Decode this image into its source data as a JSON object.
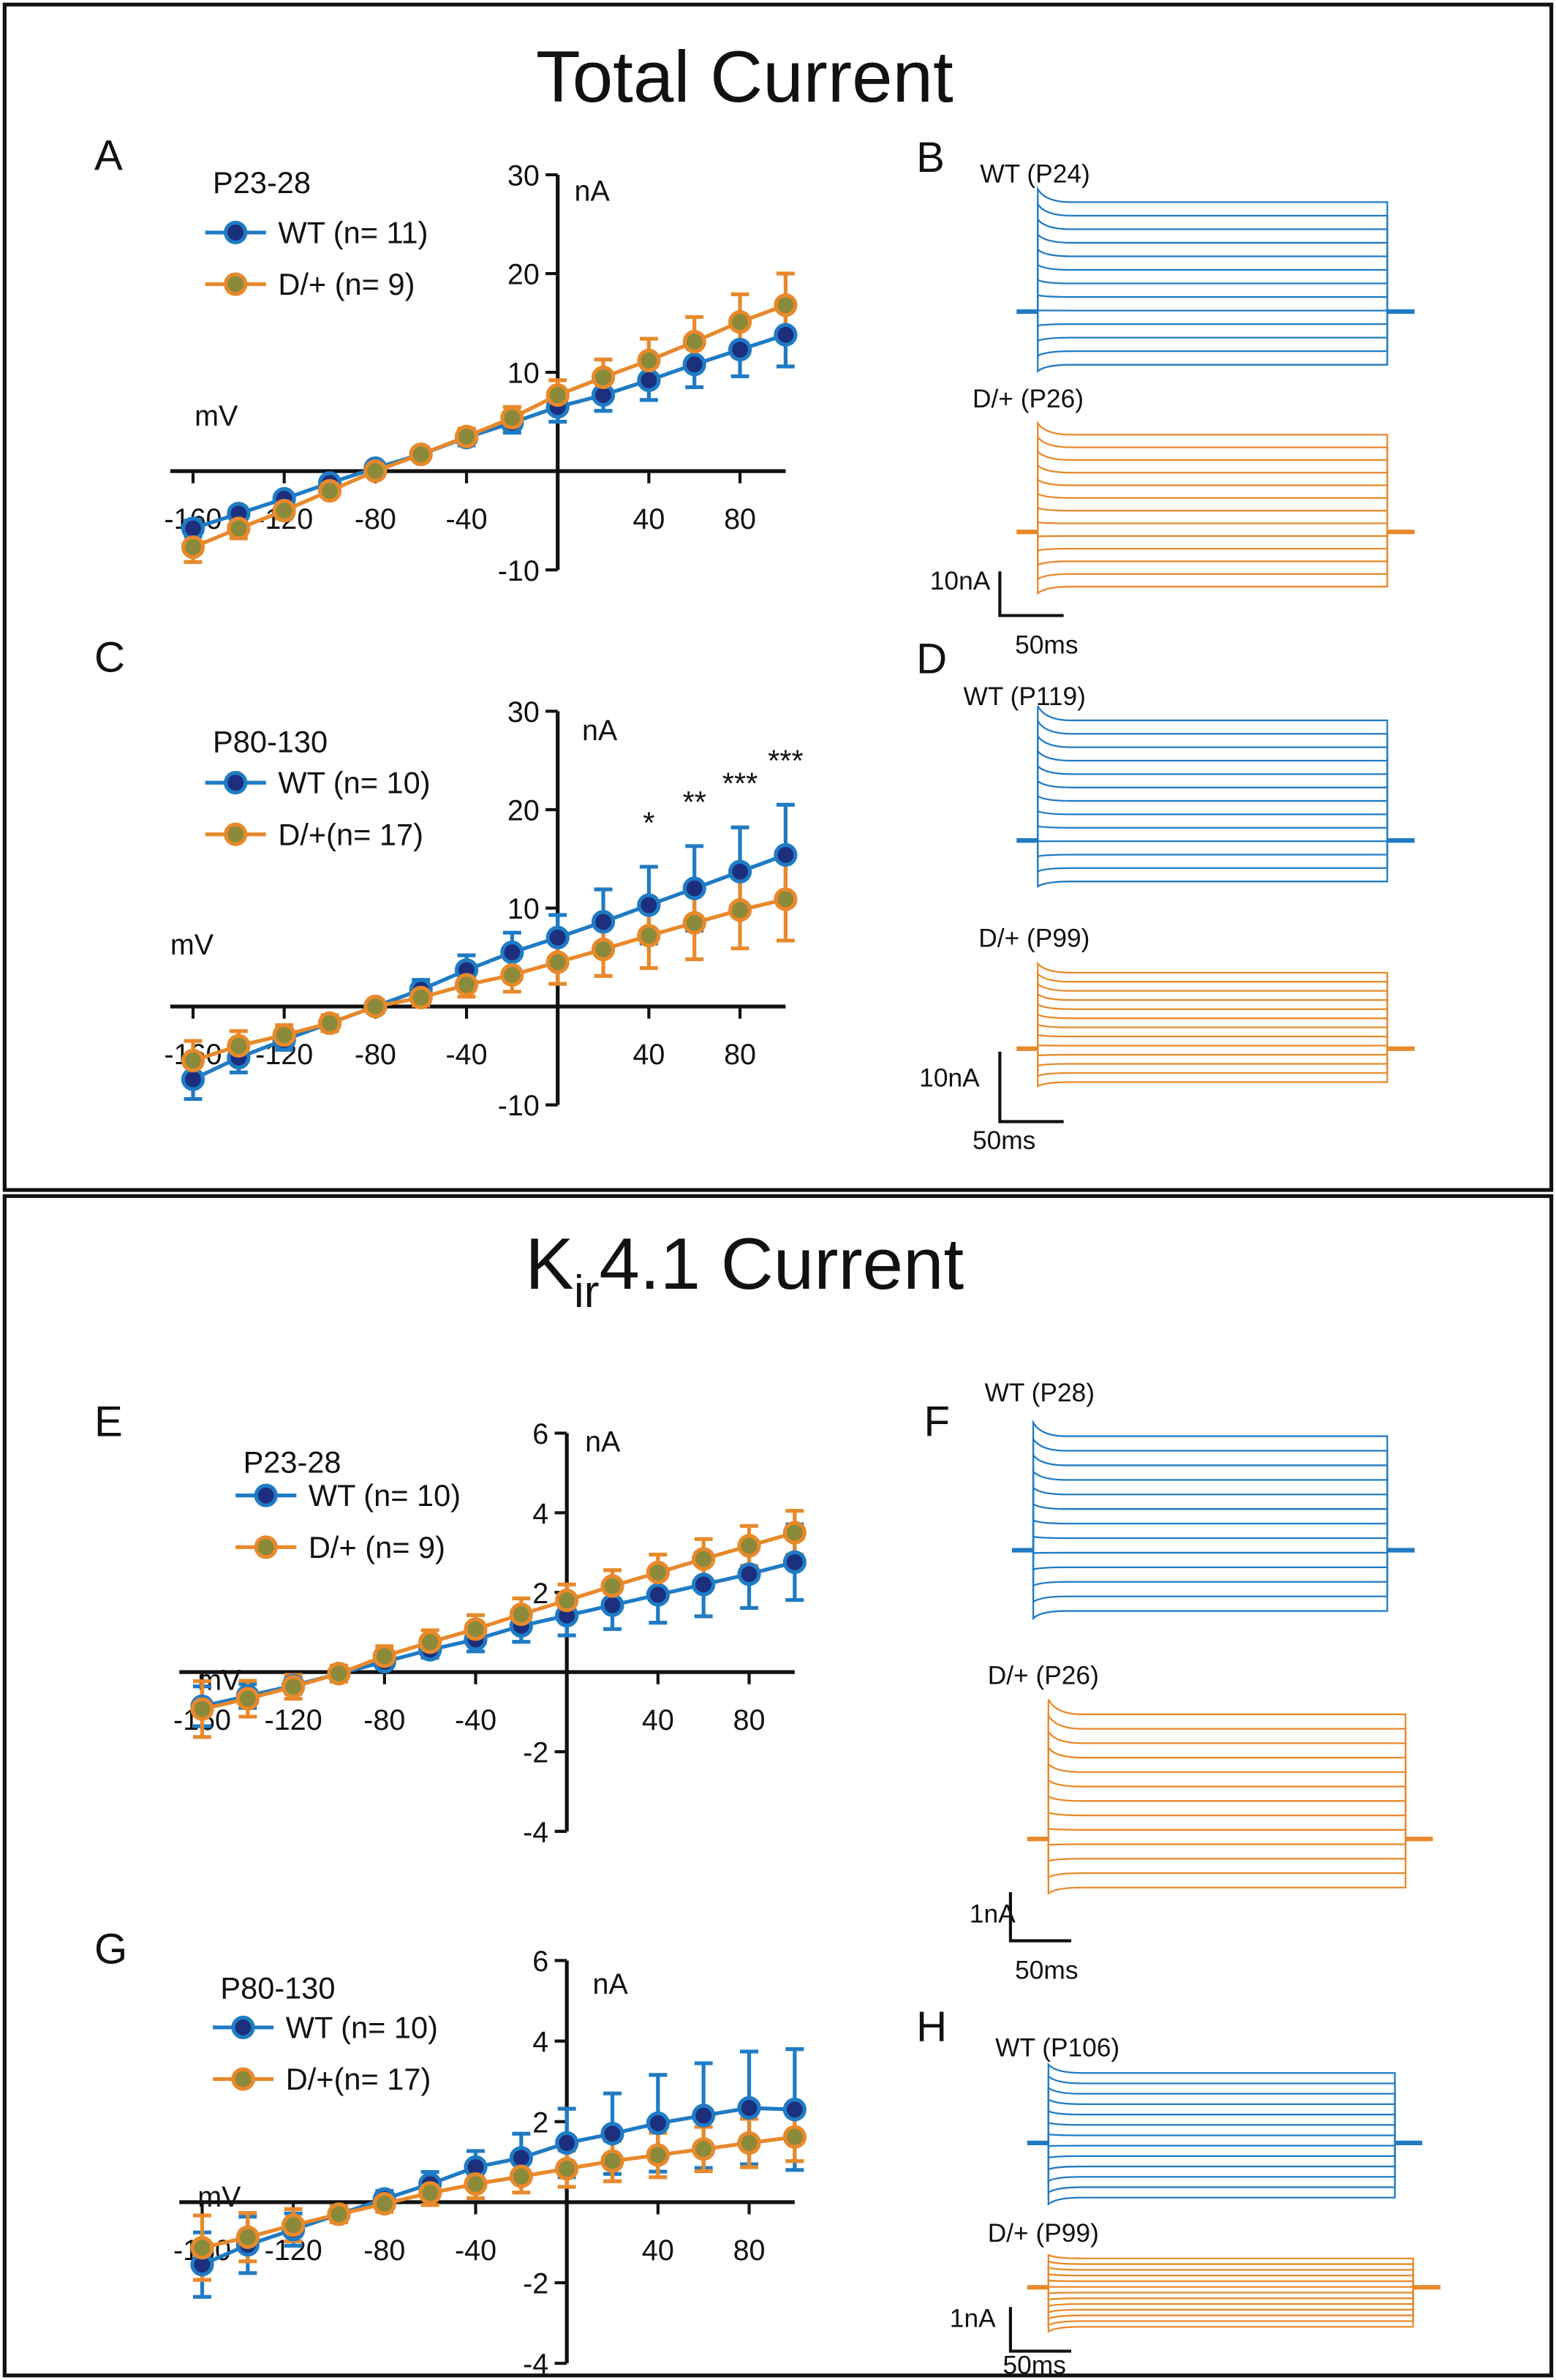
{
  "sections": [
    {
      "title": "Total Current"
    },
    {
      "title_parts": [
        "K",
        "ir",
        "4.1 Current"
      ]
    }
  ],
  "chart_data": [
    {
      "type": "line",
      "label": "A",
      "legend_title": "P23-28",
      "legend": "upper left",
      "xlabel": "mV",
      "ylabel": "nA",
      "x": [
        -160,
        -140,
        -120,
        -100,
        -80,
        -60,
        -40,
        -20,
        0,
        20,
        40,
        60,
        80,
        100
      ],
      "series": [
        {
          "name": "WT (n= 11)",
          "color": "#1f7bc4",
          "marker_color": "#1c2f7d",
          "values": [
            -5.8,
            -4.3,
            -2.8,
            -1.2,
            0.3,
            1.7,
            3.4,
            4.9,
            6.5,
            7.7,
            9.2,
            10.8,
            12.3,
            13.8
          ],
          "errors": [
            0.8,
            0.6,
            0.6,
            0.5,
            0.5,
            0.6,
            0.8,
            1.0,
            1.5,
            1.6,
            2.0,
            2.3,
            2.7,
            3.2
          ]
        },
        {
          "name": "D/+ (n= 9)",
          "color": "#e8892b",
          "marker_color": "#8a8a3a",
          "values": [
            -7.7,
            -5.8,
            -4,
            -2,
            0,
            1.7,
            3.5,
            5.4,
            7.7,
            9.5,
            11.2,
            13.1,
            15.1,
            16.8
          ],
          "errors": [
            1.5,
            1.0,
            0.8,
            0.6,
            0.5,
            0.6,
            0.8,
            1.1,
            1.5,
            1.8,
            2.2,
            2.5,
            2.8,
            3.2
          ]
        }
      ],
      "xlim": [
        -170,
        100
      ],
      "ylim": [
        -10,
        30
      ],
      "xticks": [
        -160,
        -120,
        -80,
        -40,
        40,
        80
      ],
      "yticks": [
        -10,
        10,
        20,
        30
      ],
      "annotations": []
    },
    {
      "type": "line",
      "label": "C",
      "legend_title": "P80-130",
      "legend": "upper left",
      "xlabel": "mV",
      "ylabel": "nA",
      "x": [
        -160,
        -140,
        -120,
        -100,
        -80,
        -60,
        -40,
        -20,
        0,
        20,
        40,
        60,
        80,
        100
      ],
      "series": [
        {
          "name": "WT (n= 10)",
          "color": "#1f7bc4",
          "marker_color": "#1c2f7d",
          "values": [
            -7.4,
            -5.2,
            -3.4,
            -1.7,
            0,
            1.7,
            3.7,
            5.5,
            7.0,
            8.6,
            10.3,
            12,
            13.7,
            15.4
          ],
          "errors": [
            2.0,
            1.5,
            1.0,
            0.8,
            0.6,
            1.0,
            1.5,
            2.0,
            2.3,
            3.3,
            3.9,
            4.3,
            4.5,
            5.1
          ]
        },
        {
          "name": "D/+(n= 17)",
          "color": "#e8892b",
          "marker_color": "#8a8a3a",
          "values": [
            -5.5,
            -4,
            -2.9,
            -1.7,
            0,
            0.9,
            2.2,
            3.2,
            4.5,
            5.8,
            7.2,
            8.5,
            9.8,
            10.9
          ],
          "errors": [
            2.0,
            1.5,
            1.0,
            0.8,
            0.6,
            0.8,
            1.2,
            1.7,
            2.2,
            2.7,
            3.3,
            3.7,
            3.9,
            4.2
          ]
        }
      ],
      "xlim": [
        -170,
        100
      ],
      "ylim": [
        -10,
        30
      ],
      "xticks": [
        -160,
        -120,
        -80,
        -40,
        40,
        80
      ],
      "yticks": [
        -10,
        10,
        20,
        30
      ],
      "annotations": [
        {
          "x": 40,
          "text": "*"
        },
        {
          "x": 60,
          "text": "**"
        },
        {
          "x": 80,
          "text": "***"
        },
        {
          "x": 100,
          "text": "***"
        }
      ]
    },
    {
      "type": "line",
      "label": "E",
      "legend_title": "P23-28",
      "legend": "upper left",
      "xlabel": "mV",
      "ylabel": "nA",
      "x": [
        -160,
        -140,
        -120,
        -100,
        -80,
        -60,
        -40,
        -20,
        0,
        20,
        40,
        60,
        80,
        100
      ],
      "series": [
        {
          "name": "WT (n= 10)",
          "color": "#1f7bc4",
          "marker_color": "#1c2f7d",
          "values": [
            -0.86,
            -0.6,
            -0.34,
            -0.04,
            0.26,
            0.56,
            0.82,
            1.16,
            1.42,
            1.68,
            1.94,
            2.2,
            2.46,
            2.76
          ],
          "errors": [
            0.5,
            0.3,
            0.2,
            0.15,
            0.15,
            0.2,
            0.3,
            0.4,
            0.5,
            0.6,
            0.7,
            0.8,
            0.85,
            0.95
          ]
        },
        {
          "name": "D/+ (n= 9)",
          "color": "#e8892b",
          "marker_color": "#8a8a3a",
          "values": [
            -0.93,
            -0.67,
            -0.37,
            -0.04,
            0.4,
            0.75,
            1.08,
            1.45,
            1.8,
            2.16,
            2.5,
            2.84,
            3.17,
            3.5
          ],
          "errors": [
            0.7,
            0.45,
            0.3,
            0.2,
            0.25,
            0.3,
            0.35,
            0.4,
            0.4,
            0.4,
            0.45,
            0.5,
            0.5,
            0.55
          ]
        }
      ],
      "xlim": [
        -170,
        100
      ],
      "ylim": [
        -4,
        6
      ],
      "xticks": [
        -160,
        -120,
        -80,
        -40,
        40,
        80
      ],
      "yticks": [
        -4,
        -2,
        2,
        4,
        6
      ],
      "annotations": []
    },
    {
      "type": "line",
      "label": "G",
      "legend_title": "P80-130",
      "legend": "upper left",
      "xlabel": "mV",
      "ylabel": "nA",
      "x": [
        -160,
        -140,
        -120,
        -100,
        -80,
        -60,
        -40,
        -20,
        0,
        20,
        40,
        60,
        80,
        100
      ],
      "series": [
        {
          "name": "WT (n= 10)",
          "color": "#1f7bc4",
          "marker_color": "#1c2f7d",
          "values": [
            -1.55,
            -1.06,
            -0.68,
            -0.3,
            0.08,
            0.45,
            0.87,
            1.1,
            1.47,
            1.7,
            1.96,
            2.15,
            2.34,
            2.3
          ],
          "errors": [
            0.8,
            0.7,
            0.4,
            0.2,
            0.2,
            0.3,
            0.4,
            0.6,
            0.85,
            1.0,
            1.2,
            1.3,
            1.4,
            1.5
          ]
        },
        {
          "name": "D/+(n= 17)",
          "color": "#e8892b",
          "marker_color": "#8a8a3a",
          "values": [
            -1.13,
            -0.87,
            -0.57,
            -0.3,
            -0.04,
            0.23,
            0.45,
            0.64,
            0.83,
            1.02,
            1.17,
            1.32,
            1.47,
            1.62
          ],
          "errors": [
            0.8,
            0.6,
            0.4,
            0.2,
            0.2,
            0.3,
            0.35,
            0.4,
            0.45,
            0.5,
            0.55,
            0.55,
            0.6,
            0.6
          ]
        }
      ],
      "xlim": [
        -170,
        100
      ],
      "ylim": [
        -4,
        6
      ],
      "xticks": [
        -160,
        -120,
        -80,
        -40,
        40,
        80
      ],
      "yticks": [
        -4,
        -2,
        2,
        4,
        6
      ],
      "annotations": []
    }
  ],
  "trace_panels": [
    {
      "label": "B",
      "groups": [
        {
          "name": "WT (P24)",
          "color": "#1f7bc4"
        },
        {
          "name": "D/+ (P26)",
          "color": "#e8892b"
        }
      ],
      "scale_y": "10nA",
      "scale_x": "50ms"
    },
    {
      "label": "D",
      "groups": [
        {
          "name": "WT (P119)",
          "color": "#1f7bc4"
        },
        {
          "name": "D/+ (P99)",
          "color": "#e8892b"
        }
      ],
      "scale_y": "10nA",
      "scale_x": "50ms"
    },
    {
      "label": "F",
      "groups": [
        {
          "name": "WT (P28)",
          "color": "#1f7bc4"
        },
        {
          "name": "D/+ (P26)",
          "color": "#e8892b"
        }
      ],
      "scale_y": "1nA",
      "scale_x": "50ms"
    },
    {
      "label": "H",
      "groups": [
        {
          "name": "WT  (P106)",
          "color": "#1f7bc4"
        },
        {
          "name": "D/+ (P99)",
          "color": "#e8892b"
        }
      ],
      "scale_y": "1nA",
      "scale_x": "50ms"
    }
  ]
}
